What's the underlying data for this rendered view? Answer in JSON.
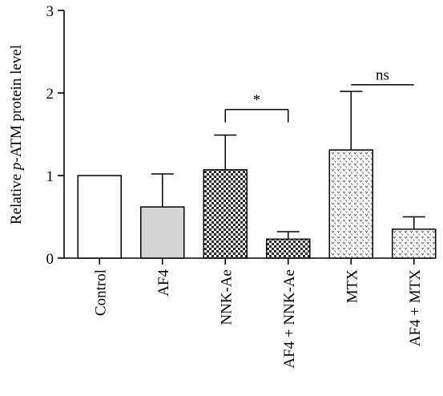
{
  "chart_data": {
    "type": "bar",
    "ylabel_prefix": "Relative ",
    "ylabel_italic": "p",
    "ylabel_suffix": "-ATM protein level",
    "xlabel": "",
    "ylim": [
      0,
      3
    ],
    "yticks": [
      "0",
      "1",
      "2",
      "3"
    ],
    "grid": false,
    "categories": [
      "Control",
      "AF4",
      "NNK-Ae",
      "AF4 + NNK-Ae",
      "MTX",
      "AF4 + MTX"
    ],
    "values": [
      1.0,
      0.62,
      1.07,
      0.23,
      1.31,
      0.35
    ],
    "errors": [
      0.0,
      0.4,
      0.42,
      0.09,
      0.71,
      0.15
    ],
    "fills": [
      "white",
      "gray",
      "checker",
      "checker",
      "dots",
      "dots"
    ],
    "colors": {
      "bar_stroke": "#000000",
      "gray_fill": "#d4d4d4"
    },
    "annotations": [
      {
        "text": "*",
        "from": 2,
        "to": 3,
        "y": 1.8
      },
      {
        "text": "ns",
        "from": 4,
        "to": 5,
        "y": 2.1
      }
    ]
  }
}
